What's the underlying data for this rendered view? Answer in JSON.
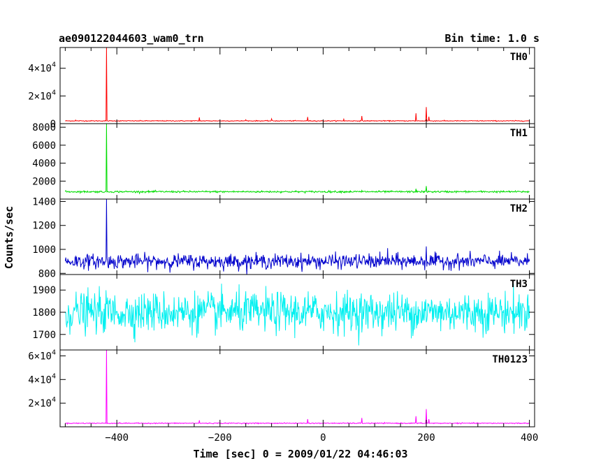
{
  "header": {
    "title": "ae090122044603_wam0_trn",
    "bin_time": "Bin time: 1.0 s"
  },
  "chart_data": {
    "type": "line",
    "title": "ae090122044603_wam0_trn",
    "subtitle": "Bin time: 1.0 s",
    "xlabel": "Time [sec] 0 = 2009/01/22 04:46:03",
    "ylabel": "Counts/sec",
    "xlim": [
      -510,
      410
    ],
    "xticks": [
      -400,
      -200,
      0,
      200,
      400
    ],
    "x_tick_labels": [
      "−400",
      "−200",
      "0",
      "200",
      "400"
    ],
    "x_range_data": [
      -500,
      400
    ],
    "grid": false,
    "panels": [
      {
        "name": "TH0",
        "color": "#ff0000",
        "ylim": [
          0,
          55000
        ],
        "yticks": [
          0,
          20000,
          40000
        ],
        "ytick_labels": [
          {
            "mant": "0",
            "exp": ""
          },
          {
            "mant": "2×10",
            "exp": "4"
          },
          {
            "mant": "4×10",
            "exp": "4"
          }
        ],
        "baseline": 2000,
        "noise": 150,
        "spikes": [
          [
            -420,
            55000
          ],
          [
            -480,
            2600
          ],
          [
            -240,
            4500
          ],
          [
            -150,
            2800
          ],
          [
            -100,
            3500
          ],
          [
            -30,
            4800
          ],
          [
            40,
            3200
          ],
          [
            75,
            5500
          ],
          [
            180,
            7500
          ],
          [
            200,
            12000
          ],
          [
            205,
            5000
          ]
        ]
      },
      {
        "name": "TH1",
        "color": "#00dd00",
        "ylim": [
          0,
          8400
        ],
        "yticks": [
          2000,
          4000,
          6000,
          8000
        ],
        "ytick_labels": [
          {
            "mant": "2000",
            "exp": ""
          },
          {
            "mant": "4000",
            "exp": ""
          },
          {
            "mant": "6000",
            "exp": ""
          },
          {
            "mant": "8000",
            "exp": ""
          }
        ],
        "baseline": 820,
        "noise": 50,
        "spikes": [
          [
            -420,
            8400
          ],
          [
            180,
            1150
          ],
          [
            200,
            1450
          ],
          [
            75,
            960
          ]
        ]
      },
      {
        "name": "TH2",
        "color": "#0000cc",
        "ylim": [
          790,
          1420
        ],
        "yticks": [
          800,
          1000,
          1200,
          1400
        ],
        "ytick_labels": [
          {
            "mant": "800",
            "exp": ""
          },
          {
            "mant": "1000",
            "exp": ""
          },
          {
            "mant": "1200",
            "exp": ""
          },
          {
            "mant": "1400",
            "exp": ""
          }
        ],
        "baseline": 900,
        "noise": 30,
        "spikes": [
          [
            -420,
            1420
          ],
          [
            200,
            1025
          ],
          [
            125,
            1010
          ]
        ]
      },
      {
        "name": "TH3",
        "color": "#00f0f0",
        "ylim": [
          1630,
          1970
        ],
        "yticks": [
          1700,
          1800,
          1900
        ],
        "ytick_labels": [
          {
            "mant": "1700",
            "exp": ""
          },
          {
            "mant": "1800",
            "exp": ""
          },
          {
            "mant": "1900",
            "exp": ""
          }
        ],
        "baseline": 1800,
        "noise": 45,
        "spikes": []
      },
      {
        "name": "TH0123",
        "color": "#ff00ff",
        "ylim": [
          0,
          65000
        ],
        "yticks": [
          20000,
          40000,
          60000
        ],
        "ytick_labels": [
          {
            "mant": "2×10",
            "exp": "4"
          },
          {
            "mant": "4×10",
            "exp": "4"
          },
          {
            "mant": "6×10",
            "exp": "4"
          }
        ],
        "baseline": 3000,
        "noise": 200,
        "spikes": [
          [
            -420,
            65000
          ],
          [
            -240,
            5500
          ],
          [
            -30,
            6500
          ],
          [
            75,
            7500
          ],
          [
            180,
            9000
          ],
          [
            200,
            15000
          ],
          [
            205,
            6500
          ]
        ]
      }
    ]
  }
}
